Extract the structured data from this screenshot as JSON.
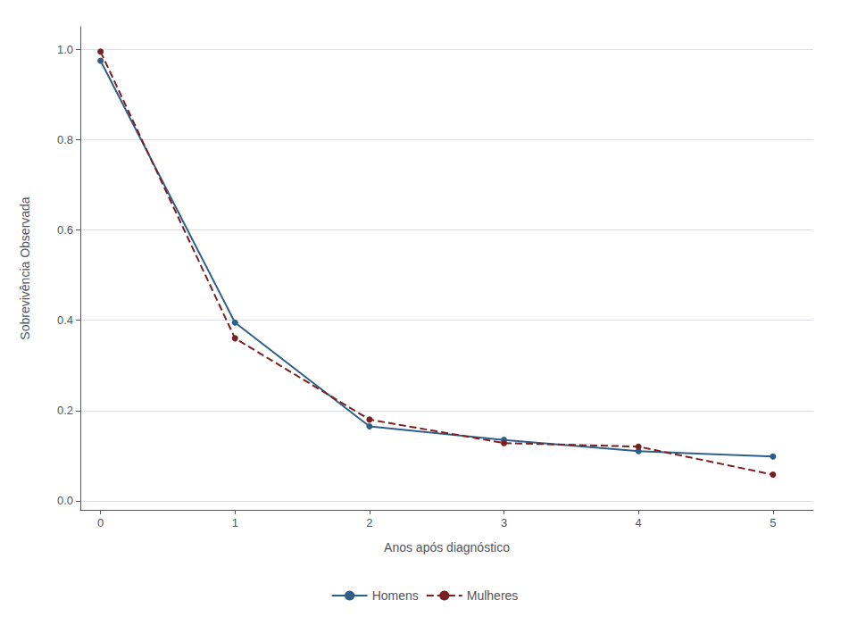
{
  "chart_data": {
    "type": "line",
    "x": [
      0,
      1,
      2,
      3,
      4,
      5
    ],
    "series": [
      {
        "name": "Homens",
        "color": "#2e5f8a",
        "line_style": "solid",
        "marker": "circle",
        "values": [
          0.975,
          0.395,
          0.165,
          0.135,
          0.11,
          0.098
        ]
      },
      {
        "name": "Mulheres",
        "color": "#7a2020",
        "line_style": "dashed",
        "marker": "circle",
        "values": [
          0.995,
          0.36,
          0.18,
          0.128,
          0.12,
          0.058
        ]
      }
    ],
    "xlabel": "Anos após diagnóstico",
    "ylabel": "Sobrevivência Observada",
    "xlim": [
      -0.15,
      5.3
    ],
    "ylim": [
      -0.02,
      1.05
    ],
    "xticks": [
      0,
      1,
      2,
      3,
      4,
      5
    ],
    "yticks": [
      {
        "value": 0,
        "label": "0.0"
      },
      0.2,
      0.4,
      0.6,
      0.8,
      {
        "value": 1,
        "label": "1.0"
      }
    ],
    "grid": "y",
    "legend": "bottom"
  }
}
